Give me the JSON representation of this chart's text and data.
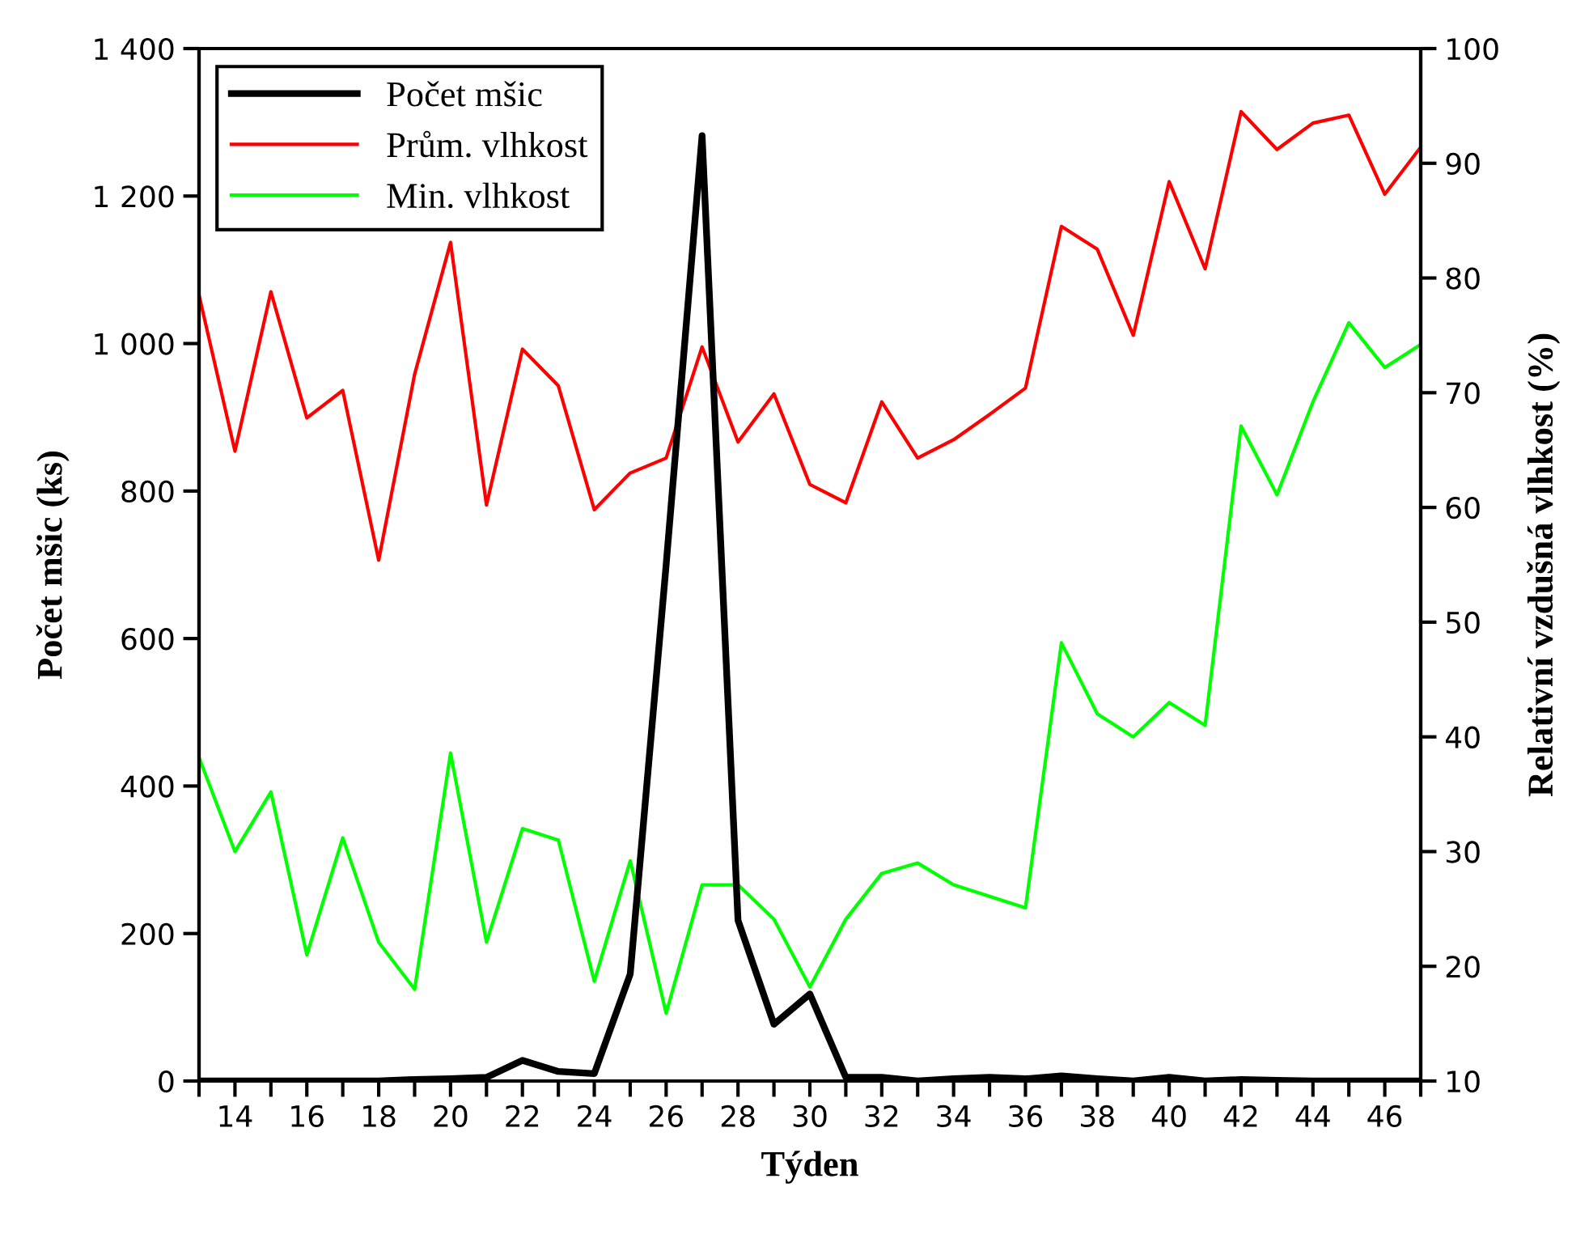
{
  "chart_data": {
    "type": "line",
    "xlabel": "Týden",
    "ylabel": "Počet mšic (ks)",
    "y2label": "Relativní vzdušná vlhkost (%)",
    "x": [
      13,
      14,
      15,
      16,
      17,
      18,
      19,
      20,
      21,
      22,
      23,
      24,
      25,
      26,
      27,
      28,
      29,
      30,
      31,
      32,
      33,
      34,
      35,
      36,
      37,
      38,
      39,
      40,
      41,
      42,
      43,
      44,
      45,
      46,
      47
    ],
    "series": [
      {
        "name": "Počet mšic",
        "color": "#000000",
        "values": [
          0,
          0,
          0,
          0,
          0,
          0,
          2,
          3,
          5,
          28,
          13,
          10,
          145,
          700,
          1282,
          218,
          77,
          118,
          5,
          5,
          0,
          3,
          5,
          3,
          7,
          3,
          0,
          5,
          0,
          2,
          1,
          0,
          0,
          0,
          0
        ]
      },
      {
        "name": "Prům. vlhkost",
        "color": "#ff0000",
        "axis": "y2",
        "values": [
          78.5,
          64.9,
          78.8,
          67.8,
          70.2,
          55.4,
          71.6,
          83.1,
          60.2,
          73.8,
          70.6,
          59.8,
          63.0,
          64.3,
          74.0,
          65.7,
          69.9,
          62.0,
          60.4,
          69.2,
          64.3,
          65.9,
          68.1,
          70.4,
          84.5,
          82.5,
          75.0,
          88.4,
          80.8,
          94.5,
          91.2,
          93.5,
          94.2,
          87.3,
          91.4
        ]
      },
      {
        "name": "Min. vlhkost",
        "color": "#00ff00",
        "axis": "y2",
        "values": [
          38.2,
          30.0,
          35.2,
          21.0,
          31.2,
          22.1,
          18.0,
          38.6,
          22.1,
          32.0,
          31.0,
          18.7,
          29.2,
          15.9,
          27.1,
          27.1,
          24.1,
          18.2,
          24.1,
          28.1,
          29.0,
          27.1,
          26.1,
          25.1,
          48.2,
          42.0,
          40.0,
          43.0,
          41.0,
          67.1,
          61.1,
          69.2,
          76.1,
          72.2,
          74.2
        ]
      }
    ],
    "xlim": [
      13,
      47
    ],
    "xticks": [
      {
        "value": 13,
        "label": null
      },
      14,
      {
        "value": 15,
        "label": null
      },
      16,
      {
        "value": 17,
        "label": null
      },
      18,
      {
        "value": 19,
        "label": null
      },
      20,
      {
        "value": 21,
        "label": null
      },
      22,
      {
        "value": 23,
        "label": null
      },
      24,
      {
        "value": 25,
        "label": null
      },
      26,
      {
        "value": 27,
        "label": null
      },
      28,
      {
        "value": 29,
        "label": null
      },
      30,
      {
        "value": 31,
        "label": null
      },
      32,
      {
        "value": 33,
        "label": null
      },
      34,
      {
        "value": 35,
        "label": null
      },
      36,
      {
        "value": 37,
        "label": null
      },
      38,
      {
        "value": 39,
        "label": null
      },
      40,
      {
        "value": 41,
        "label": null
      },
      42,
      {
        "value": 43,
        "label": null
      },
      44,
      {
        "value": 45,
        "label": null
      },
      46,
      {
        "value": 47,
        "label": null
      }
    ],
    "ylim": [
      0,
      1400
    ],
    "yticks": [
      0,
      200,
      400,
      600,
      800,
      {
        "value": 1000,
        "label": "1 000"
      },
      {
        "value": 1200,
        "label": "1 200"
      },
      {
        "value": 1400,
        "label": "1 400"
      }
    ],
    "y2lim": [
      10,
      100
    ],
    "y2ticks": [
      10,
      20,
      30,
      40,
      50,
      60,
      70,
      80,
      90,
      100
    ],
    "legend": "top left",
    "grid": false,
    "marker": "none",
    "line_style": "solid"
  }
}
